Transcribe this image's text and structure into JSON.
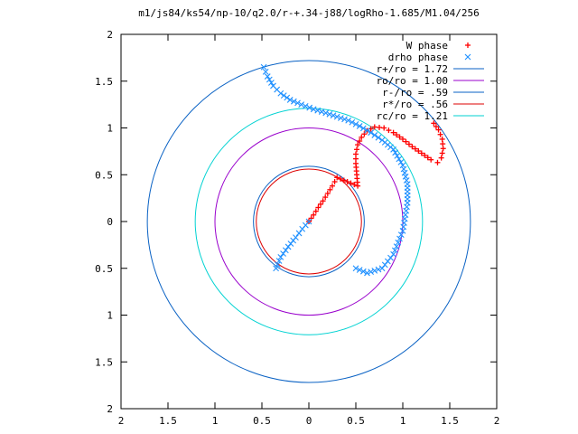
{
  "chart_data": {
    "type": "scatter",
    "title": "m1/js84/ks54/np-10/q2.0/r-+.34-j88/logRho-1.685/M1.04/256",
    "xlabel": "",
    "ylabel": "",
    "xlim": [
      -2,
      2
    ],
    "ylim": [
      -2,
      2
    ],
    "grid": false,
    "legend_position": "top-right",
    "x_ticks": [
      "2",
      "1.5",
      "1",
      "0.5",
      "0",
      "0.5",
      "1",
      "1.5",
      "2"
    ],
    "y_ticks": [
      "2",
      "1.5",
      "1",
      "0.5",
      "0",
      "0.5",
      "1",
      "1.5",
      "2"
    ],
    "series": [
      {
        "name": "W phase",
        "kind": "points",
        "marker": "plus",
        "color": "#ff0000",
        "points": [
          [
            0.0,
            0.0
          ],
          [
            0.05,
            0.07
          ],
          [
            0.1,
            0.15
          ],
          [
            0.15,
            0.22
          ],
          [
            0.2,
            0.3
          ],
          [
            0.25,
            0.38
          ],
          [
            0.3,
            0.47
          ],
          [
            0.52,
            0.38
          ],
          [
            0.51,
            0.5
          ],
          [
            0.5,
            0.62
          ],
          [
            0.5,
            0.72
          ],
          [
            0.52,
            0.82
          ],
          [
            0.56,
            0.9
          ],
          [
            0.62,
            0.97
          ],
          [
            0.7,
            1.01
          ],
          [
            0.8,
            1.0
          ],
          [
            0.9,
            0.95
          ],
          [
            1.0,
            0.88
          ],
          [
            1.1,
            0.8
          ],
          [
            1.2,
            0.73
          ],
          [
            1.3,
            0.66
          ],
          [
            1.37,
            0.63
          ],
          [
            1.41,
            0.68
          ],
          [
            1.43,
            0.78
          ],
          [
            1.42,
            0.88
          ],
          [
            1.38,
            0.98
          ],
          [
            1.33,
            1.05
          ]
        ]
      },
      {
        "name": "drho phase",
        "kind": "points",
        "marker": "cross",
        "color": "#1f90ff",
        "points": [
          [
            -0.48,
            1.65
          ],
          [
            -0.44,
            1.55
          ],
          [
            -0.38,
            1.45
          ],
          [
            -0.3,
            1.37
          ],
          [
            -0.2,
            1.3
          ],
          [
            -0.08,
            1.25
          ],
          [
            0.05,
            1.2
          ],
          [
            0.18,
            1.16
          ],
          [
            0.3,
            1.12
          ],
          [
            0.42,
            1.08
          ],
          [
            0.54,
            1.02
          ],
          [
            0.66,
            0.95
          ],
          [
            0.78,
            0.87
          ],
          [
            0.9,
            0.77
          ],
          [
            1.0,
            0.6
          ],
          [
            1.05,
            0.4
          ],
          [
            1.05,
            0.2
          ],
          [
            1.0,
            -0.1
          ],
          [
            0.9,
            -0.35
          ],
          [
            0.78,
            -0.5
          ],
          [
            0.62,
            -0.55
          ],
          [
            0.5,
            -0.5
          ],
          [
            -0.35,
            -0.5
          ],
          [
            -0.3,
            -0.38
          ],
          [
            -0.22,
            -0.27
          ],
          [
            -0.14,
            -0.17
          ],
          [
            -0.07,
            -0.08
          ],
          [
            0.0,
            0.0
          ]
        ]
      },
      {
        "name": "r+/ro = 1.72",
        "kind": "circle",
        "radius": 1.72,
        "color": "#0a62c4"
      },
      {
        "name": "ro/ro = 1.00",
        "kind": "circle",
        "radius": 1.0,
        "color": "#9900cc"
      },
      {
        "name": "r-/ro = .59",
        "kind": "circle",
        "radius": 0.59,
        "color": "#0a62c4"
      },
      {
        "name": "r*/ro = .56",
        "kind": "circle",
        "radius": 0.56,
        "color": "#dd0000"
      },
      {
        "name": "rc/ro = 1.21",
        "kind": "circle",
        "radius": 1.21,
        "color": "#00d2d2"
      }
    ]
  }
}
